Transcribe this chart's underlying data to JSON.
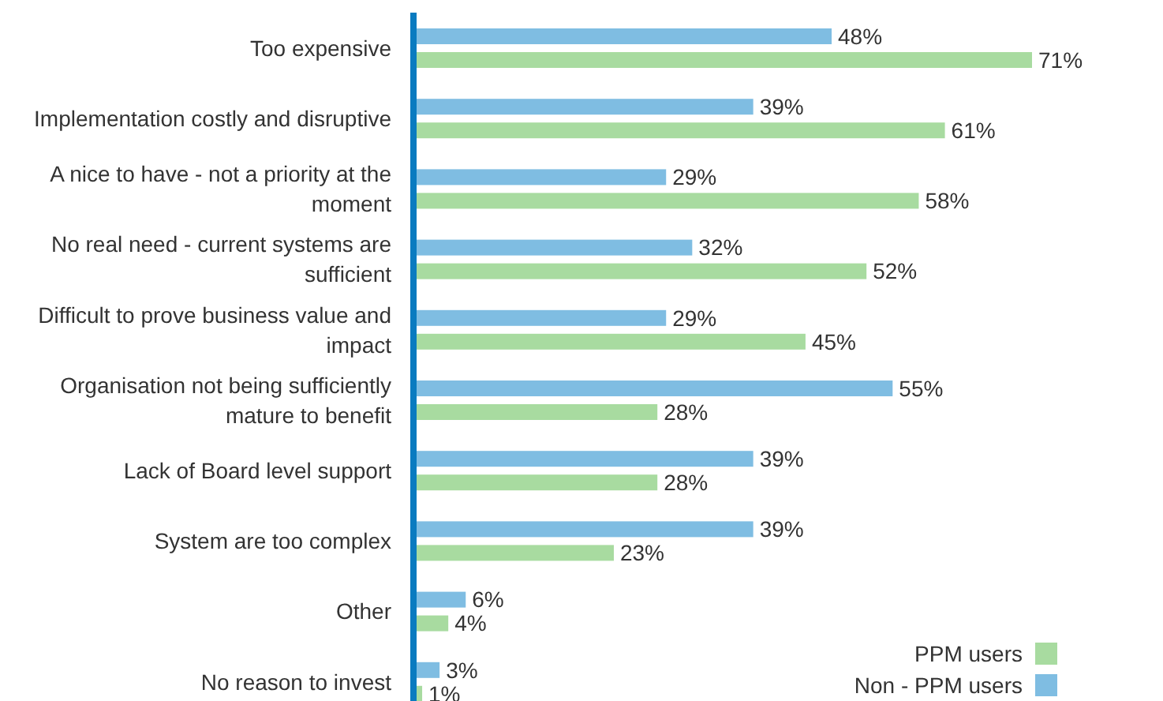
{
  "chart_data": {
    "type": "bar",
    "orientation": "horizontal",
    "categories": [
      "Too expensive",
      "Implementation costly and disruptive",
      "A nice to have - not a priority at the moment",
      "No real need - current systems are sufficient",
      "Difficult to prove business value and impact",
      "Organisation not being sufficiently mature to benefit",
      "Lack of Board level support",
      "System are too complex",
      "Other",
      "No reason to invest"
    ],
    "series": [
      {
        "name": "PPM users",
        "color": "#a8dba0",
        "values": [
          71,
          61,
          58,
          52,
          45,
          28,
          28,
          23,
          4,
          1
        ],
        "value_labels": [
          "71%",
          "61%",
          "58%",
          "52%",
          "45%",
          "28%",
          "28%",
          "23%",
          "4%",
          "1%"
        ]
      },
      {
        "name": "Non - PPM users",
        "color": "#7fbde2",
        "values": [
          48,
          39,
          29,
          32,
          29,
          55,
          39,
          39,
          6,
          3
        ],
        "value_labels": [
          "48%",
          "39%",
          "29%",
          "32%",
          "29%",
          "55%",
          "39%",
          "39%",
          "6%",
          "3%"
        ]
      }
    ],
    "tick_labels": "y",
    "legend": "bottom right"
  }
}
